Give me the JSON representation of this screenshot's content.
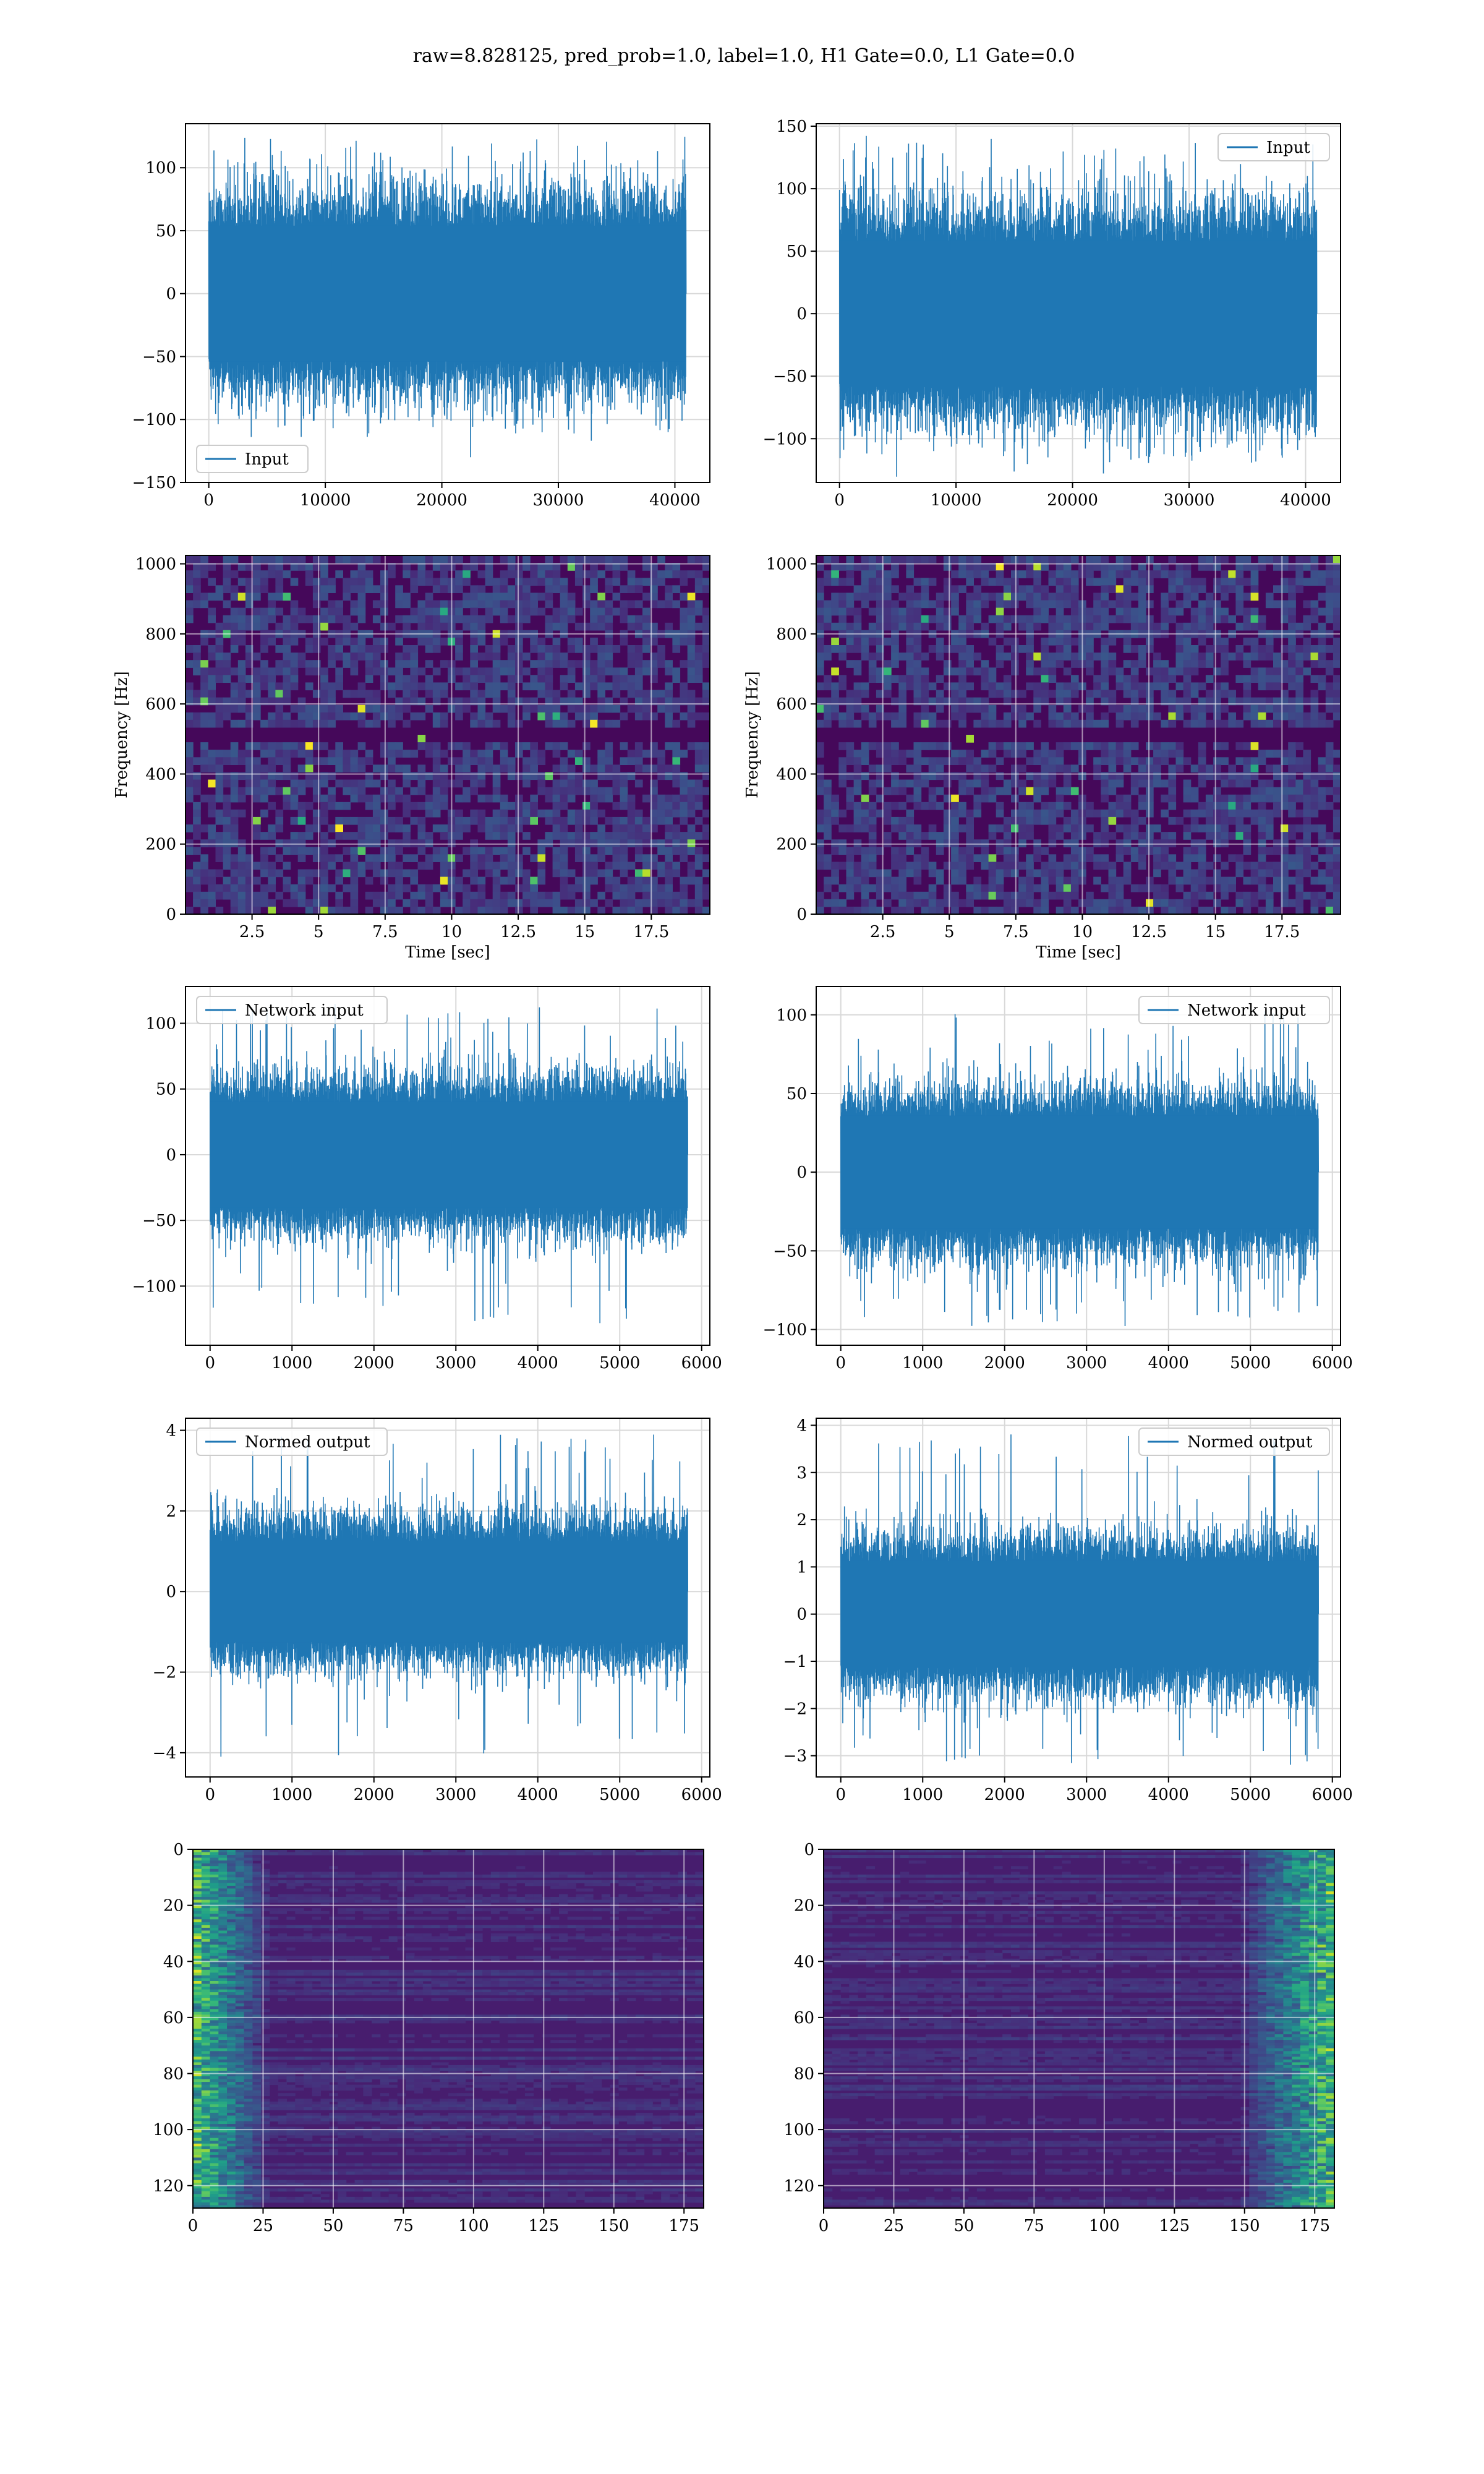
{
  "suptitle": "raw=8.828125, pred_prob=1.0, label=1.0, H1 Gate=0.0, L1 Gate=0.0",
  "colors": {
    "series": "#1f77b4",
    "grid": "#d9d9d9",
    "frame": "#000000"
  },
  "chart_data": [
    {
      "id": "h1-input",
      "type": "line",
      "title": "",
      "xlabel": "",
      "ylabel": "",
      "legend": {
        "entries": [
          "Input"
        ],
        "placement": "lower-left"
      },
      "xlim": [
        -2000,
        43000
      ],
      "ylim": [
        -150,
        135
      ],
      "xticks": [
        0,
        10000,
        20000,
        30000,
        40000
      ],
      "yticks": [
        -150,
        -100,
        -50,
        0,
        50,
        100
      ],
      "x_range": [
        0,
        40960
      ],
      "band": [
        -60,
        60
      ],
      "spread": [
        -115,
        125
      ],
      "grid": true
    },
    {
      "id": "l1-input",
      "type": "line",
      "title": "",
      "xlabel": "",
      "ylabel": "",
      "legend": {
        "entries": [
          "Input"
        ],
        "placement": "upper-right"
      },
      "xlim": [
        -2000,
        43000
      ],
      "ylim": [
        -135,
        152
      ],
      "xticks": [
        0,
        10000,
        20000,
        30000,
        40000
      ],
      "yticks": [
        -100,
        -50,
        0,
        50,
        100,
        150
      ],
      "x_range": [
        0,
        40960
      ],
      "band": [
        -65,
        65
      ],
      "spread": [
        -120,
        140
      ],
      "grid": true
    },
    {
      "id": "h1-spectrogram",
      "type": "heatmap",
      "title": "",
      "xlabel": "Time [sec]",
      "ylabel": "Frequency [Hz]",
      "xlim": [
        0,
        19.7
      ],
      "ylim": [
        0,
        1024
      ],
      "xticks": [
        2.5,
        5.0,
        7.5,
        10.0,
        12.5,
        15.0,
        17.5
      ],
      "yticks": [
        0,
        200,
        400,
        600,
        800,
        1000
      ],
      "colormap": "viridis",
      "grid": true
    },
    {
      "id": "l1-spectrogram",
      "type": "heatmap",
      "title": "",
      "xlabel": "Time [sec]",
      "ylabel": "Frequency [Hz]",
      "xlim": [
        0,
        19.7
      ],
      "ylim": [
        0,
        1024
      ],
      "xticks": [
        2.5,
        5.0,
        7.5,
        10.0,
        12.5,
        15.0,
        17.5
      ],
      "yticks": [
        0,
        200,
        400,
        600,
        800,
        1000
      ],
      "colormap": "viridis",
      "grid": true
    },
    {
      "id": "h1-network-input",
      "type": "line",
      "title": "",
      "xlabel": "",
      "ylabel": "",
      "legend": {
        "entries": [
          "Network input"
        ],
        "placement": "upper-left"
      },
      "xlim": [
        -300,
        6100
      ],
      "ylim": [
        -145,
        128
      ],
      "xticks": [
        0,
        1000,
        2000,
        3000,
        4000,
        5000,
        6000
      ],
      "yticks": [
        -100,
        -50,
        0,
        50,
        100
      ],
      "x_range": [
        0,
        5830
      ],
      "band": [
        -45,
        45
      ],
      "spread": [
        -130,
        115
      ],
      "grid": true
    },
    {
      "id": "l1-network-input",
      "type": "line",
      "title": "",
      "xlabel": "",
      "ylabel": "",
      "legend": {
        "entries": [
          "Network input"
        ],
        "placement": "upper-right"
      },
      "xlim": [
        -300,
        6100
      ],
      "ylim": [
        -110,
        118
      ],
      "xticks": [
        0,
        1000,
        2000,
        3000,
        4000,
        5000,
        6000
      ],
      "yticks": [
        -100,
        -50,
        0,
        50,
        100
      ],
      "x_range": [
        0,
        5830
      ],
      "band": [
        -40,
        40
      ],
      "spread": [
        -98,
        105
      ],
      "grid": true
    },
    {
      "id": "h1-normed-output",
      "type": "line",
      "title": "",
      "xlabel": "",
      "ylabel": "",
      "legend": {
        "entries": [
          "Normed output"
        ],
        "placement": "upper-left"
      },
      "xlim": [
        -300,
        6100
      ],
      "ylim": [
        -4.6,
        4.3
      ],
      "xticks": [
        0,
        1000,
        2000,
        3000,
        4000,
        5000,
        6000
      ],
      "yticks": [
        -4,
        -2,
        0,
        2,
        4
      ],
      "x_range": [
        0,
        5830
      ],
      "band": [
        -1.4,
        1.4
      ],
      "spread": [
        -4.2,
        3.9
      ],
      "grid": true
    },
    {
      "id": "l1-normed-output",
      "type": "line",
      "title": "",
      "xlabel": "",
      "ylabel": "",
      "legend": {
        "entries": [
          "Normed output"
        ],
        "placement": "upper-right"
      },
      "xlim": [
        -300,
        6100
      ],
      "ylim": [
        -3.45,
        4.15
      ],
      "xticks": [
        0,
        1000,
        2000,
        3000,
        4000,
        5000,
        6000
      ],
      "yticks": [
        -3,
        -2,
        -1,
        0,
        1,
        2,
        3,
        4
      ],
      "x_range": [
        0,
        5830
      ],
      "band": [
        -1.25,
        1.25
      ],
      "spread": [
        -3.2,
        3.9
      ],
      "grid": true
    },
    {
      "id": "h1-feature-map",
      "type": "heatmap",
      "title": "",
      "xlabel": "",
      "ylabel": "",
      "xlim": [
        0,
        182
      ],
      "ylim": [
        128,
        0
      ],
      "xticks": [
        0,
        25,
        50,
        75,
        100,
        125,
        150,
        175
      ],
      "yticks": [
        0,
        20,
        40,
        60,
        80,
        100,
        120
      ],
      "colormap": "viridis",
      "grid": true
    },
    {
      "id": "l1-feature-map",
      "type": "heatmap",
      "title": "",
      "xlabel": "",
      "ylabel": "",
      "xlim": [
        0,
        182
      ],
      "ylim": [
        128,
        0
      ],
      "xticks": [
        0,
        25,
        50,
        75,
        100,
        125,
        150,
        175
      ],
      "yticks": [
        0,
        20,
        40,
        60,
        80,
        100,
        120
      ],
      "colormap": "viridis",
      "grid": true
    }
  ]
}
